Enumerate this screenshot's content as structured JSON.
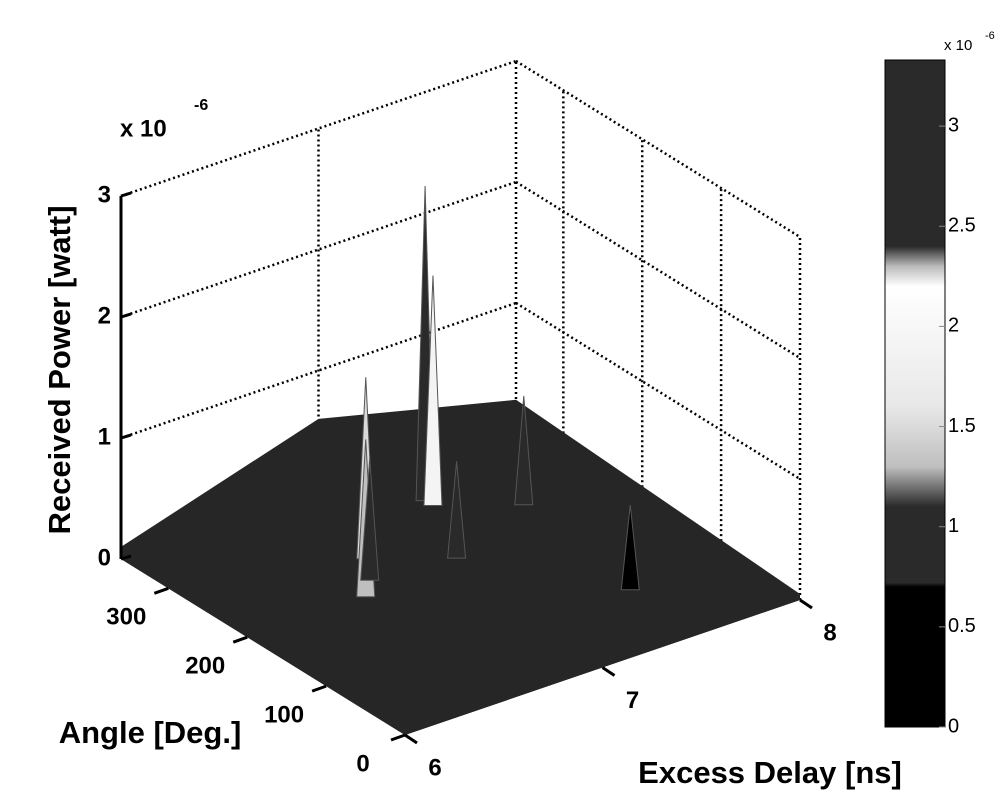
{
  "chart_data": {
    "type": "surface",
    "zlabel": "Received Power [watt]",
    "xlabel": "Excess Delay [ns]",
    "ylabel": "Angle [Deg.]",
    "z_multiplier": "x 10",
    "z_exponent": "-6",
    "xlim": [
      6,
      8
    ],
    "xticks": [
      6,
      7,
      8
    ],
    "ylim": [
      0,
      360
    ],
    "yticks": [
      0,
      100,
      200,
      300
    ],
    "zlim": [
      0,
      3
    ],
    "zticks": [
      0,
      1,
      2,
      3
    ],
    "grid": true,
    "peaks": {
      "x": [
        7.3,
        7.3,
        6.8,
        6.6,
        6.7,
        7.6,
        7.5,
        7.1
      ],
      "y": [
        300,
        290,
        250,
        200,
        220,
        250,
        90,
        210
      ],
      "z": [
        2.6,
        1.9,
        1.5,
        1.3,
        1.0,
        0.9,
        0.7,
        0.8
      ]
    },
    "colorbar": {
      "clim": [
        0,
        3.33
      ],
      "ticks": [
        0,
        0.5,
        1,
        1.5,
        2,
        2.5,
        3
      ],
      "multiplier": "x 10",
      "exponent": "-6",
      "colormap": [
        {
          "value": 0,
          "color": "#000000"
        },
        {
          "value": 0.7,
          "color": "#000000"
        },
        {
          "value": 0.72,
          "color": "#2a2a2a"
        },
        {
          "value": 1.1,
          "color": "#2a2a2a"
        },
        {
          "value": 1.3,
          "color": "#bfbfbf"
        },
        {
          "value": 1.6,
          "color": "#e8e8e8"
        },
        {
          "value": 2.2,
          "color": "#ffffff"
        },
        {
          "value": 2.3,
          "color": "#bbbbbb"
        },
        {
          "value": 2.4,
          "color": "#2a2a2a"
        },
        {
          "value": 3.33,
          "color": "#2a2a2a"
        }
      ]
    }
  }
}
